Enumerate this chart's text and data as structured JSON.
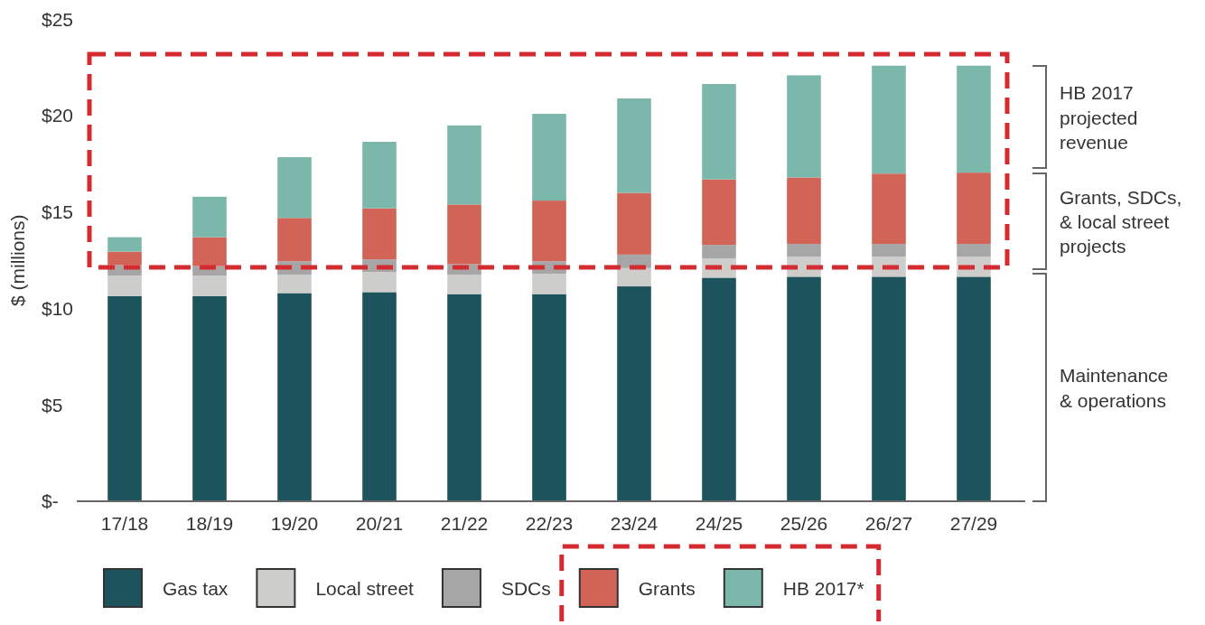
{
  "chart_data": {
    "type": "bar",
    "stacked": true,
    "ylabel": "$ (millions)",
    "categories": [
      "17/18",
      "18/19",
      "19/20",
      "20/21",
      "21/22",
      "22/23",
      "23/24",
      "24/25",
      "25/26",
      "26/27",
      "27/29"
    ],
    "series": [
      {
        "name": "Gas tax",
        "color": "#1d535c",
        "values": [
          10.65,
          10.65,
          10.8,
          10.85,
          10.75,
          10.75,
          11.15,
          11.6,
          11.65,
          11.65,
          11.65
        ]
      },
      {
        "name": "Local street",
        "color": "#cdcdcc",
        "values": [
          1.05,
          1.05,
          0.95,
          1.05,
          1.0,
          1.05,
          0.95,
          1.0,
          1.05,
          1.05,
          1.05
        ]
      },
      {
        "name": "SDCs",
        "color": "#a6a6a6",
        "values": [
          0.55,
          0.5,
          0.7,
          0.65,
          0.55,
          0.65,
          0.7,
          0.7,
          0.65,
          0.65,
          0.65
        ]
      },
      {
        "name": "Grants",
        "color": "#d16456",
        "values": [
          0.7,
          1.5,
          2.25,
          2.65,
          3.1,
          3.15,
          3.2,
          3.4,
          3.45,
          3.65,
          3.7
        ]
      },
      {
        "name": "HB 2017*",
        "color": "#7bb7aa",
        "values": [
          0.75,
          2.1,
          3.15,
          3.45,
          4.1,
          4.5,
          4.9,
          4.95,
          5.3,
          5.6,
          5.55
        ]
      }
    ],
    "ylim": [
      0,
      25
    ],
    "yticks": [
      {
        "value": 0,
        "label": "$-"
      },
      {
        "value": 5,
        "label": "$5"
      },
      {
        "value": 10,
        "label": "$10"
      },
      {
        "value": 15,
        "label": "$15"
      },
      {
        "value": 20,
        "label": "$20"
      },
      {
        "value": 25,
        "label": "$25"
      }
    ],
    "annotations": [
      "HB 2017\nprojected\nrevenue",
      "Grants, SDCs,\n& local street\nprojects",
      "Maintenance\n& operations"
    ],
    "grid": false,
    "legend": "bottom"
  }
}
